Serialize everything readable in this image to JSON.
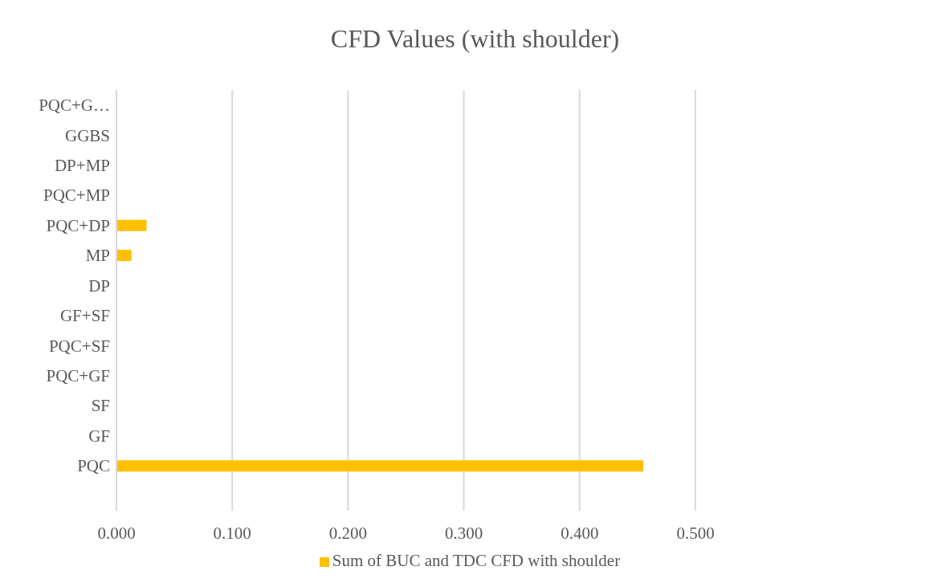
{
  "chart_data": {
    "type": "bar",
    "orientation": "horizontal",
    "title": "CFD Values (with shoulder)",
    "categories": [
      "PQC+G…",
      "GGBS",
      "DP+MP",
      "PQC+MP",
      "PQC+DP",
      "MP",
      "DP",
      "GF+SF",
      "PQC+SF",
      "PQC+GF",
      "SF",
      "GF",
      "PQC",
      null
    ],
    "series": [
      {
        "name": "Sum of BUC and TDC CFD with shoulder",
        "color": "#ffc000",
        "values": [
          0,
          0,
          0,
          0,
          0.026,
          0.013,
          0,
          0,
          0,
          0,
          0,
          0,
          0.455,
          null
        ]
      }
    ],
    "xlim": [
      0,
      0.5
    ],
    "xticks": [
      {
        "value": 0,
        "label": "0.000"
      },
      {
        "value": 0.1,
        "label": "0.100"
      },
      {
        "value": 0.2,
        "label": "0.200"
      },
      {
        "value": 0.3,
        "label": "0.300"
      },
      {
        "value": 0.4,
        "label": "0.400"
      },
      {
        "value": 0.5,
        "label": "0.500"
      }
    ],
    "grid": "x",
    "legend": "bottom"
  }
}
